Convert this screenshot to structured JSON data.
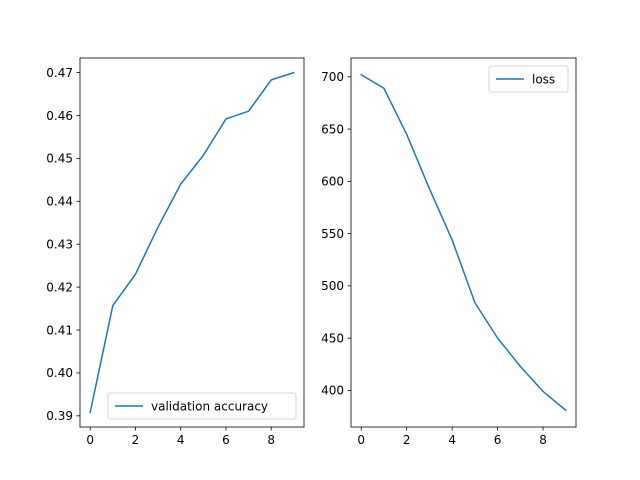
{
  "chart_data": [
    {
      "type": "line",
      "x": [
        0,
        1,
        2,
        3,
        4,
        5,
        6,
        7,
        8,
        9
      ],
      "series": [
        {
          "name": "validation accuracy",
          "values": [
            0.3908,
            0.4157,
            0.423,
            0.434,
            0.444,
            0.4507,
            0.4592,
            0.461,
            0.4683,
            0.47
          ],
          "color": "#1f77b4"
        }
      ],
      "xlim": [
        -0.45,
        9.45
      ],
      "ylim": [
        0.3874,
        0.4734
      ],
      "xticks": [
        0,
        2,
        4,
        6,
        8
      ],
      "yticks": [
        0.39,
        0.4,
        0.41,
        0.42,
        0.43,
        0.44,
        0.45,
        0.46,
        0.47
      ],
      "xtick_labels": [
        "0",
        "2",
        "4",
        "6",
        "8"
      ],
      "ytick_labels": [
        "0.39",
        "0.40",
        "0.41",
        "0.42",
        "0.43",
        "0.44",
        "0.45",
        "0.46",
        "0.47"
      ],
      "legend": "lower-right",
      "grid": false
    },
    {
      "type": "line",
      "x": [
        0,
        1,
        2,
        3,
        4,
        5,
        6,
        7,
        8,
        9
      ],
      "series": [
        {
          "name": "loss",
          "values": [
            702,
            689,
            645,
            593,
            544,
            484,
            450,
            423,
            399,
            381
          ],
          "color": "#1f77b4"
        }
      ],
      "xlim": [
        -0.45,
        9.45
      ],
      "ylim": [
        365,
        718
      ],
      "xticks": [
        0,
        2,
        4,
        6,
        8
      ],
      "yticks": [
        400,
        450,
        500,
        550,
        600,
        650,
        700
      ],
      "xtick_labels": [
        "0",
        "2",
        "4",
        "6",
        "8"
      ],
      "ytick_labels": [
        "400",
        "450",
        "500",
        "550",
        "600",
        "650",
        "700"
      ],
      "legend": "top-right",
      "grid": false
    }
  ]
}
